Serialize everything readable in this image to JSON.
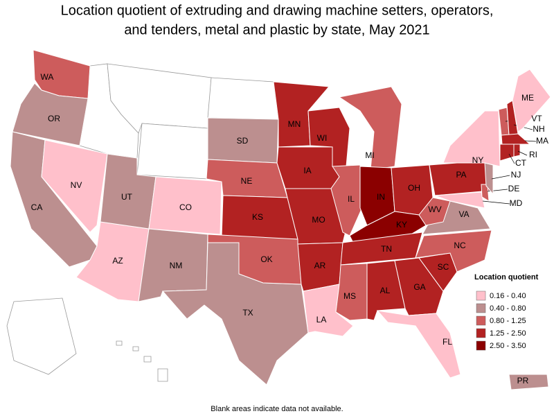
{
  "title_lines": [
    "Location quotient of extruding and drawing machine setters, operators,",
    "and tenders, metal and plastic by state, May 2021"
  ],
  "states": [
    {
      "label": "WA",
      "color": "#cd5c5c"
    },
    {
      "label": "OR",
      "color": "#bc8f8f"
    },
    {
      "label": "CA",
      "color": "#bc8f8f"
    },
    {
      "label": "NV",
      "color": "#ffc0cb"
    },
    {
      "label": "AZ",
      "color": "#ffc0cb"
    },
    {
      "label": "UT",
      "color": "#bc8f8f"
    },
    {
      "label": "CO",
      "color": "#ffc0cb"
    },
    {
      "label": "NM",
      "color": "#bc8f8f"
    },
    {
      "label": "TX",
      "color": "#bc8f8f"
    },
    {
      "label": "SD",
      "color": "#bc8f8f"
    },
    {
      "label": "NE",
      "color": "#cd5c5c"
    },
    {
      "label": "KS",
      "color": "#b22222"
    },
    {
      "label": "OK",
      "color": "#cd5c5c"
    },
    {
      "label": "MN",
      "color": "#b22222"
    },
    {
      "label": "IA",
      "color": "#b22222"
    },
    {
      "label": "MO",
      "color": "#b22222"
    },
    {
      "label": "AR",
      "color": "#b22222"
    },
    {
      "label": "LA",
      "color": "#ffc0cb"
    },
    {
      "label": "WI",
      "color": "#b22222"
    },
    {
      "label": "IL",
      "color": "#cd5c5c"
    },
    {
      "label": "MI",
      "color": "#cd5c5c"
    },
    {
      "label": "IN",
      "color": "#8b0000"
    },
    {
      "label": "OH",
      "color": "#b22222"
    },
    {
      "label": "KY",
      "color": "#8b0000"
    },
    {
      "label": "TN",
      "color": "#b22222"
    },
    {
      "label": "MS",
      "color": "#cd5c5c"
    },
    {
      "label": "AL",
      "color": "#b22222"
    },
    {
      "label": "GA",
      "color": "#b22222"
    },
    {
      "label": "FL",
      "color": "#ffc0cb"
    },
    {
      "label": "SC",
      "color": "#b22222"
    },
    {
      "label": "NC",
      "color": "#cd5c5c"
    },
    {
      "label": "VA",
      "color": "#bc8f8f"
    },
    {
      "label": "WV",
      "color": "#cd5c5c"
    },
    {
      "label": "PA",
      "color": "#b22222"
    },
    {
      "label": "NY",
      "color": "#ffc0cb"
    },
    {
      "label": "MD",
      "color": "#ffc0cb"
    },
    {
      "label": "DE",
      "color": "#cd5c5c"
    },
    {
      "label": "NJ",
      "color": "#bc8f8f"
    },
    {
      "label": "VT",
      "color": "#cd5c5c"
    },
    {
      "label": "NH",
      "color": "#b22222"
    },
    {
      "label": "ME",
      "color": "#ffc0cb"
    },
    {
      "label": "MA",
      "color": "#b22222"
    },
    {
      "label": "CT",
      "color": "#b22222"
    },
    {
      "label": "RI",
      "color": "#b22222"
    },
    {
      "label": "PR",
      "color": "#bc8f8f"
    }
  ],
  "legend": {
    "title": "Location quotient",
    "items": [
      {
        "label": "0.16 - 0.40",
        "color": "#ffc0cb"
      },
      {
        "label": "0.40 - 0.80",
        "color": "#bc8f8f"
      },
      {
        "label": "0.80 - 1.25",
        "color": "#cd5c5c"
      },
      {
        "label": "1.25 - 2.50",
        "color": "#b22222"
      },
      {
        "label": "2.50 - 3.50",
        "color": "#8b0000"
      }
    ]
  },
  "note": "Blank areas indicate data not available."
}
